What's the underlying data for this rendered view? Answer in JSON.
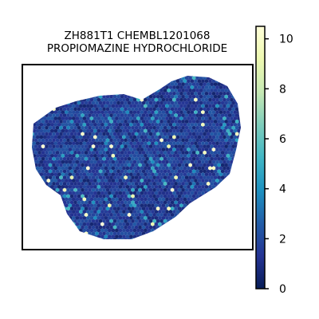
{
  "chart_data": {
    "type": "heatmap",
    "subtype": "hexbin spatial map",
    "title": [
      "ZH881T1 CHEMBL1201068",
      "PROPIOMAZINE HYDROCHLORIDE"
    ],
    "xlabel": "",
    "ylabel": "",
    "colorbar": {
      "colormap": "YlGnBu_r",
      "vmin": 0,
      "vmax": 10.5,
      "ticks": [
        0,
        2,
        4,
        6,
        8,
        10
      ],
      "tick_labels": [
        "0",
        "2",
        "4",
        "6",
        "8",
        "10"
      ]
    },
    "value_summary": {
      "typical_range": [
        0.5,
        2.5
      ],
      "max_observed": 10.5
    }
  }
}
